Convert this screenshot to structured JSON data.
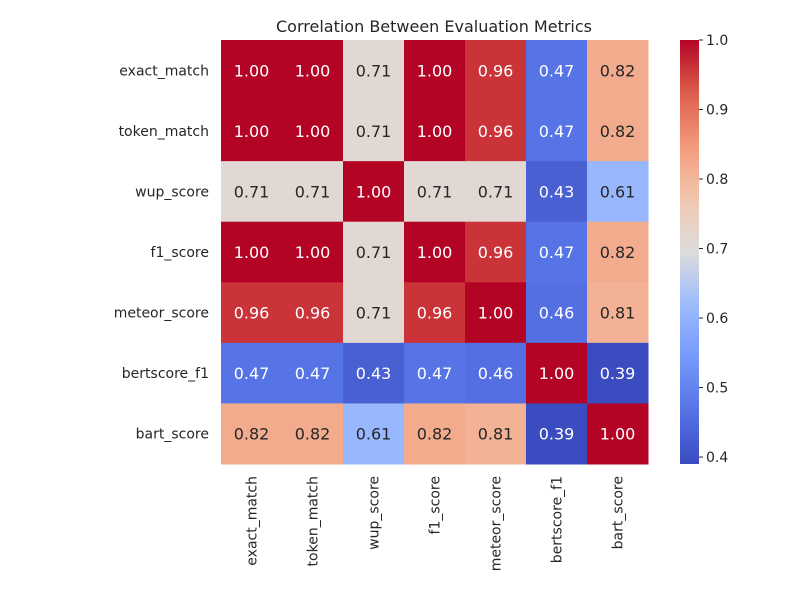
{
  "chart_data": {
    "type": "heatmap",
    "title": "Correlation Between Evaluation Metrics",
    "xlabel": "",
    "ylabel": "",
    "rows": [
      "exact_match",
      "token_match",
      "wup_score",
      "f1_score",
      "meteor_score",
      "bertscore_f1",
      "bart_score"
    ],
    "columns": [
      "exact_match",
      "token_match",
      "wup_score",
      "f1_score",
      "meteor_score",
      "bertscore_f1",
      "bart_score"
    ],
    "values": [
      [
        1.0,
        1.0,
        0.71,
        1.0,
        0.96,
        0.47,
        0.82
      ],
      [
        1.0,
        1.0,
        0.71,
        1.0,
        0.96,
        0.47,
        0.82
      ],
      [
        0.71,
        0.71,
        1.0,
        0.71,
        0.71,
        0.43,
        0.61
      ],
      [
        1.0,
        1.0,
        0.71,
        1.0,
        0.96,
        0.47,
        0.82
      ],
      [
        0.96,
        0.96,
        0.71,
        0.96,
        1.0,
        0.46,
        0.81
      ],
      [
        0.47,
        0.47,
        0.43,
        0.47,
        0.46,
        1.0,
        0.39
      ],
      [
        0.82,
        0.82,
        0.61,
        0.82,
        0.81,
        0.39,
        1.0
      ]
    ],
    "value_format": "0.00",
    "colormap": "coolwarm",
    "color_range": [
      0.39,
      1.0
    ],
    "colorbar_ticks": [
      "1.0",
      "0.9",
      "0.8",
      "0.7",
      "0.6",
      "0.5",
      "0.4"
    ],
    "colors": {
      "low": "#3b4cc0",
      "mid": "#dddcdc",
      "high": "#b40426"
    }
  }
}
